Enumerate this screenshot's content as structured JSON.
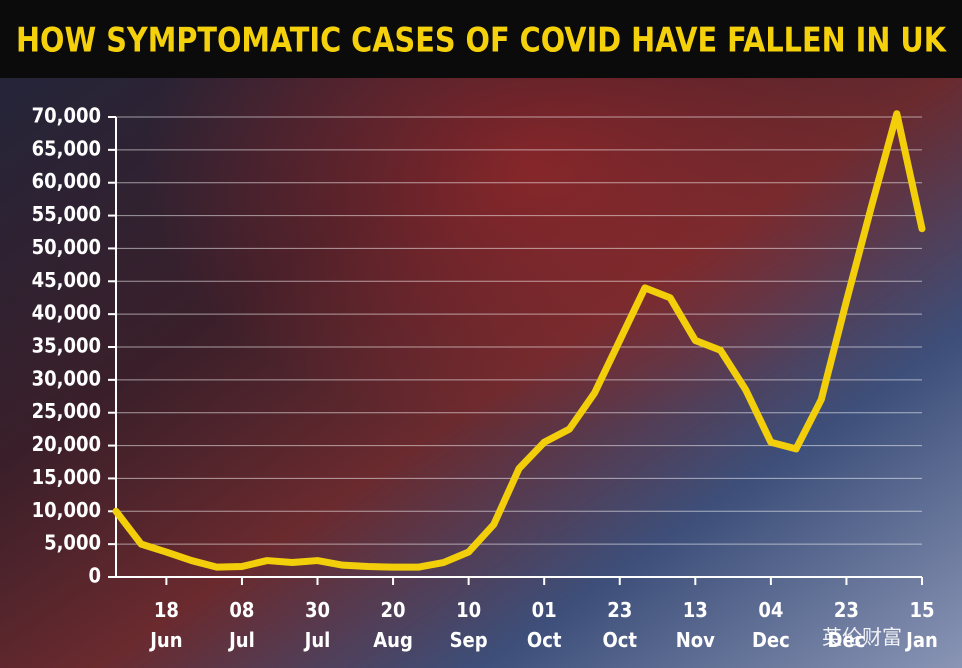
{
  "chart_data": {
    "type": "line",
    "title": "HOW SYMPTOMATIC CASES OF COVID HAVE FALLEN IN UK",
    "watermark": "英伦财富",
    "categories": [
      null,
      null,
      "18 Jun",
      null,
      null,
      "08 Jul",
      null,
      null,
      "30 Jul",
      null,
      null,
      "20 Aug",
      null,
      null,
      "10 Sep",
      null,
      null,
      "01 Oct",
      null,
      null,
      "23 Oct",
      null,
      null,
      "13 Nov",
      null,
      null,
      "04 Dec",
      null,
      null,
      "23 Dec",
      null,
      null,
      "15 Jan"
    ],
    "values": [
      10000,
      5000,
      3800,
      2500,
      1500,
      1600,
      2500,
      2200,
      2500,
      1800,
      1600,
      1500,
      1500,
      2200,
      3800,
      8000,
      16500,
      20500,
      22500,
      28000,
      36000,
      44000,
      42500,
      36000,
      34500,
      28500,
      20500,
      19500,
      27000,
      42000,
      56500,
      70500,
      53000
    ],
    "color": "#f2cf0a",
    "ylim": [
      0,
      70000
    ],
    "yticks": [
      0,
      {
        "value": 5000,
        "label": "5,000"
      },
      {
        "value": 10000,
        "label": "10,000"
      },
      {
        "value": 15000,
        "label": "15,000"
      },
      {
        "value": 20000,
        "label": "20,000"
      },
      {
        "value": 25000,
        "label": "25,000"
      },
      {
        "value": 30000,
        "label": "30,000"
      },
      {
        "value": 35000,
        "label": "35,000"
      },
      {
        "value": 40000,
        "label": "40,000"
      },
      {
        "value": 45000,
        "label": "45,000"
      },
      {
        "value": 50000,
        "label": "50,000"
      },
      {
        "value": 55000,
        "label": "55,000"
      },
      {
        "value": 60000,
        "label": "60,000"
      },
      {
        "value": 65000,
        "label": "65,000"
      },
      {
        "value": 70000,
        "label": "70,000"
      }
    ],
    "grid": true
  }
}
